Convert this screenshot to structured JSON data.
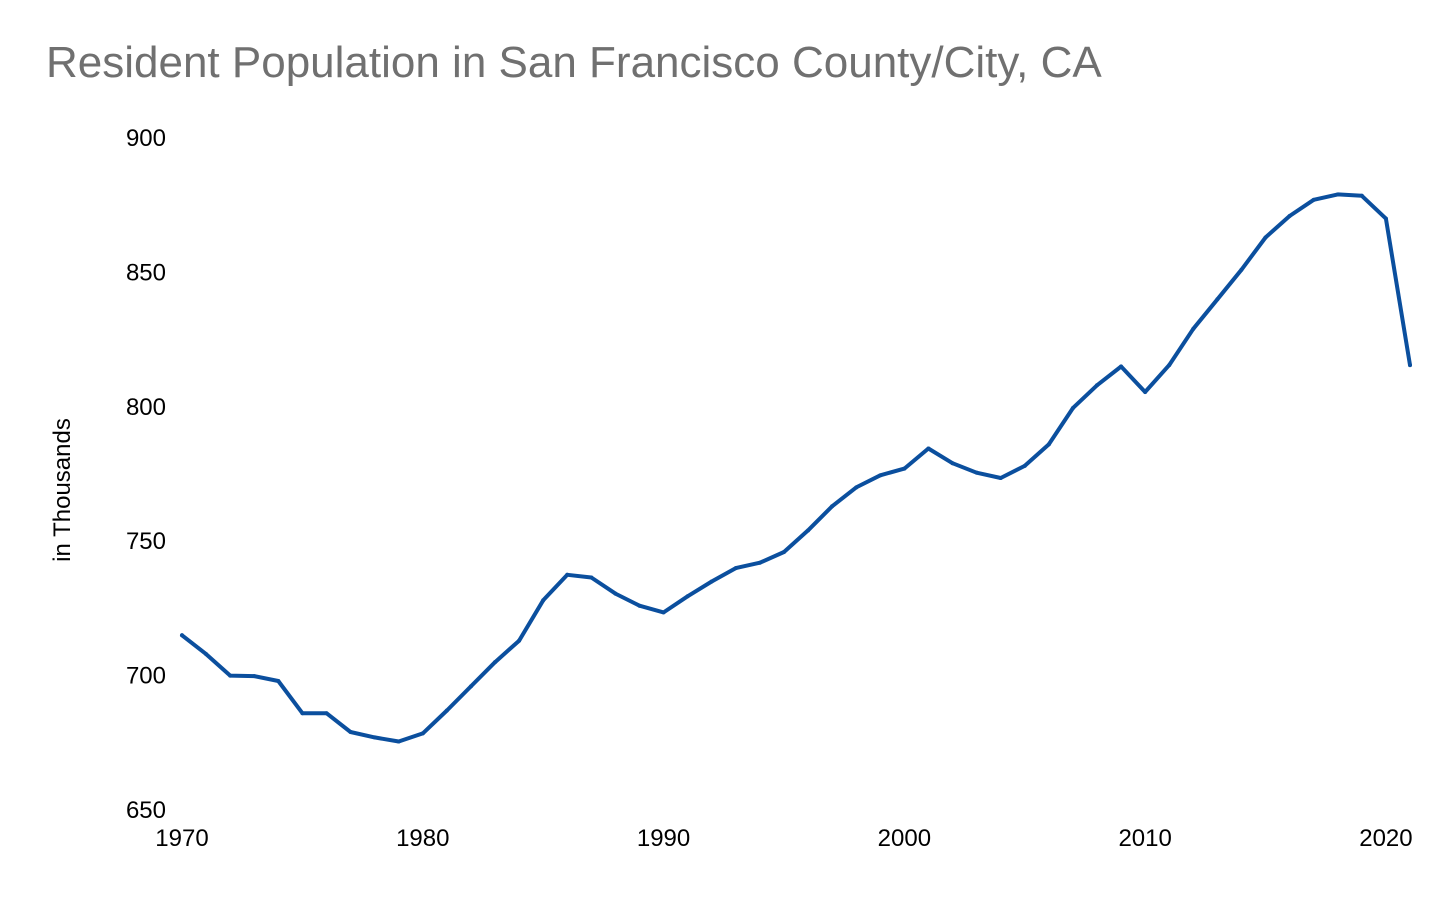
{
  "chart_data": {
    "type": "line",
    "title": "Resident Population in San Francisco County/City, CA",
    "xlabel": "",
    "ylabel": "in Thousands",
    "xlim": [
      1970,
      2021
    ],
    "ylim": [
      650,
      900
    ],
    "xticks": [
      1970,
      1980,
      1990,
      2000,
      2010,
      2020
    ],
    "yticks": [
      650,
      700,
      750,
      800,
      850,
      900
    ],
    "grid": false,
    "legend": "none",
    "line_color": "#0B4F9E",
    "series": [
      {
        "x": [
          1970,
          1971,
          1972,
          1973,
          1974,
          1975,
          1976,
          1977,
          1978,
          1979,
          1980,
          1981,
          1982,
          1983,
          1984,
          1985,
          1986,
          1987,
          1988,
          1989,
          1990,
          1991,
          1992,
          1993,
          1994,
          1995,
          1996,
          1997,
          1998,
          1999,
          2000,
          2001,
          2002,
          2003,
          2004,
          2005,
          2006,
          2007,
          2008,
          2009,
          2010,
          2011,
          2012,
          2013,
          2014,
          2015,
          2016,
          2017,
          2018,
          2019,
          2020,
          2021
        ],
        "y": [
          715,
          708,
          700,
          699.8,
          698,
          686,
          686,
          679,
          677,
          675.5,
          678.5,
          687,
          696,
          705,
          713,
          728,
          737.5,
          736.5,
          730.5,
          726,
          723.5,
          729.5,
          735,
          740,
          742,
          746,
          754,
          763,
          770,
          774.5,
          777,
          784.5,
          779,
          775.5,
          773.5,
          778,
          786,
          799.5,
          808,
          815,
          805.5,
          815.5,
          829,
          840,
          851,
          863,
          871,
          877,
          879,
          878.5,
          870,
          815.5
        ]
      }
    ]
  }
}
